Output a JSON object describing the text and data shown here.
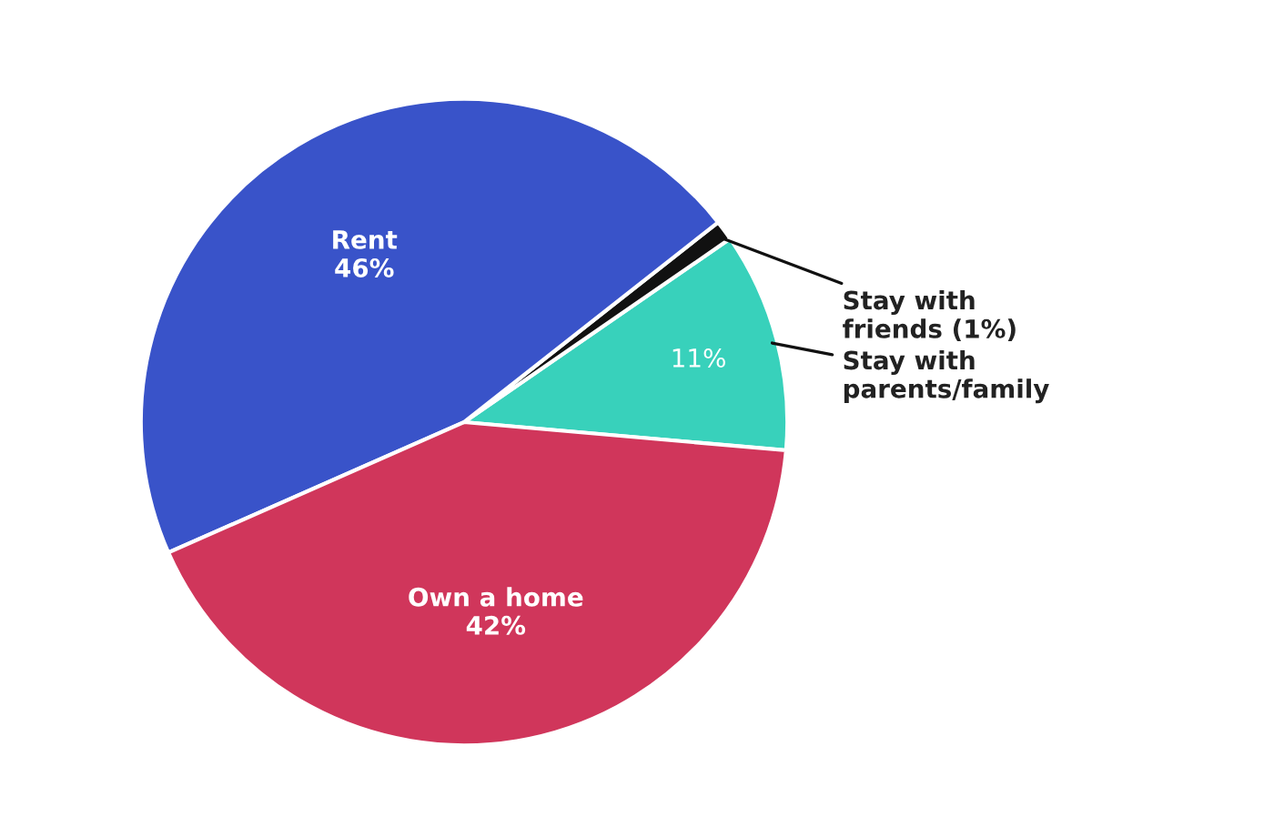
{
  "chart_data": {
    "type": "pie",
    "categories": [
      "Stay with\nparents/family",
      "Stay with\nfriends (1%)",
      "Rent",
      "Own a home"
    ],
    "values": [
      11,
      1,
      46,
      42
    ],
    "value_labels": [
      "11%",
      null,
      "46%",
      "42%"
    ],
    "colors": [
      "#38d1bb",
      "#111111",
      "#3953c9",
      "#d0365b"
    ]
  }
}
